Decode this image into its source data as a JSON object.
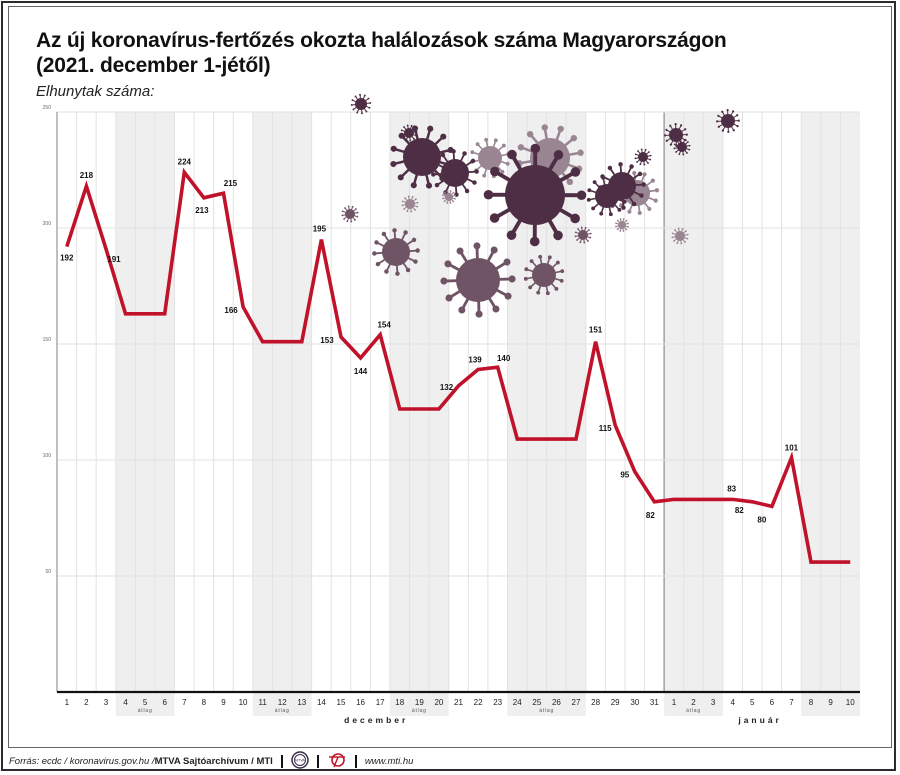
{
  "title_line1": "Az új koronavírus-fertőzés okozta halálozások száma Magyarországon",
  "title_line2": "(2021. december 1-jétől)",
  "subtitle": "Elhunytak száma:",
  "colors": {
    "line": "#c0122a",
    "shade": "#efefef",
    "grid": "#e2e2e2",
    "virus_dark": "#4e2e44",
    "virus_mid": "#6f5466",
    "virus_light": "#9a8592"
  },
  "chart_data": {
    "type": "line",
    "title": "Az új koronavírus-fertőzés okozta halálozások száma Magyarországon (2021. december 1-jétől)",
    "ylabel": "Elhunytak száma:",
    "ylim": [
      0,
      250
    ],
    "yticks": [
      "250",
      "200",
      "150",
      "100",
      "50"
    ],
    "ytick_values": [
      250,
      200,
      150,
      100,
      50
    ],
    "x": [
      "1",
      "2",
      "3",
      "4",
      "5",
      "6",
      "7",
      "8",
      "9",
      "10",
      "11",
      "12",
      "13",
      "14",
      "15",
      "16",
      "17",
      "18",
      "19",
      "20",
      "21",
      "22",
      "23",
      "24",
      "25",
      "26",
      "27",
      "28",
      "29",
      "30",
      "31",
      "1",
      "2",
      "3",
      "4",
      "5",
      "6",
      "7",
      "8",
      "9",
      "10"
    ],
    "values": [
      192,
      218,
      191,
      163,
      163,
      163,
      224,
      213,
      215,
      166,
      151,
      151,
      151,
      195,
      153,
      144,
      154,
      122,
      122,
      122,
      132,
      139,
      140,
      109,
      109,
      109,
      109,
      151,
      115,
      95,
      82,
      83,
      83,
      83,
      83,
      82,
      80,
      101,
      56,
      56,
      56
    ],
    "data_labels": [
      {
        "index": 0,
        "text": "192"
      },
      {
        "index": 1,
        "text": "218"
      },
      {
        "index": 2,
        "text": "191"
      },
      {
        "index": 6,
        "text": "224"
      },
      {
        "index": 7,
        "text": "213"
      },
      {
        "index": 8,
        "text": "215"
      },
      {
        "index": 9,
        "text": "166"
      },
      {
        "index": 13,
        "text": "195"
      },
      {
        "index": 14,
        "text": "153"
      },
      {
        "index": 15,
        "text": "144"
      },
      {
        "index": 16,
        "text": "154"
      },
      {
        "index": 20,
        "text": "132"
      },
      {
        "index": 21,
        "text": "139"
      },
      {
        "index": 22,
        "text": "140"
      },
      {
        "index": 27,
        "text": "151"
      },
      {
        "index": 28,
        "text": "115"
      },
      {
        "index": 29,
        "text": "95"
      },
      {
        "index": 30,
        "text": "82"
      },
      {
        "index": 34,
        "text": "83"
      },
      {
        "index": 35,
        "text": "82"
      },
      {
        "index": 36,
        "text": "80"
      },
      {
        "index": 37,
        "text": "101"
      }
    ],
    "average_periods": [
      {
        "start": 3,
        "end": 5,
        "label": "átlag"
      },
      {
        "start": 10,
        "end": 12,
        "label": "átlag"
      },
      {
        "start": 17,
        "end": 19,
        "label": "átlag"
      },
      {
        "start": 23,
        "end": 26,
        "label": "átlag"
      },
      {
        "start": 31,
        "end": 33,
        "label": "átlag"
      },
      {
        "start": 38,
        "end": 40,
        "label": ""
      }
    ],
    "months": [
      {
        "label": "december",
        "start": 0,
        "end": 30
      },
      {
        "label": "január",
        "start": 31,
        "end": 40
      }
    ],
    "grid": true
  },
  "footer": {
    "source_prefix": "Forrás: ecdc / koronavirus.gov.hu / ",
    "source_bold": "MTVA Sajtóarchívum / MTI",
    "logo1_text": "MTVA",
    "website": "www.mti.hu"
  }
}
